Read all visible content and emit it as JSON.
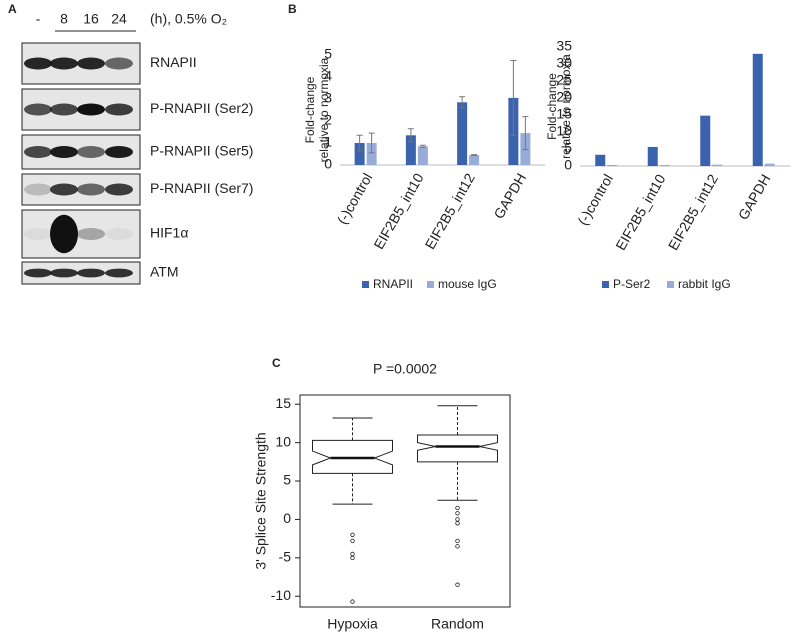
{
  "panels": {
    "a": "A",
    "b": "B",
    "c": "C"
  },
  "blot": {
    "lanes": [
      "-",
      "8",
      "16",
      "24"
    ],
    "condition": "(h), 0.5% O₂",
    "rows": [
      "RNAPII",
      "P-RNAPII (Ser2)",
      "P-RNAPII (Ser5)",
      "P-RNAPII (Ser7)",
      "HIF1α",
      "ATM"
    ]
  },
  "chart_data": [
    {
      "type": "bar",
      "ylabel": [
        "Fold-change",
        "relative to normoxia"
      ],
      "categories": [
        "(-)control",
        "EIF2B5_int10",
        "EIF2B5_int12",
        "GAPDH"
      ],
      "series": [
        {
          "name": "RNAPII",
          "color": "#3a62ad",
          "values": [
            1.0,
            1.35,
            2.85,
            3.05
          ],
          "errors": [
            0.35,
            0.3,
            0.25,
            1.7
          ]
        },
        {
          "name": "mouse IgG",
          "color": "#98acd9",
          "values": [
            1.0,
            0.85,
            0.45,
            1.45
          ],
          "errors": [
            0.45,
            0.05,
            0.02,
            0.75
          ]
        }
      ],
      "ylim": [
        0,
        5
      ],
      "yticks": [
        0,
        1,
        2,
        3,
        4,
        5
      ]
    },
    {
      "type": "bar",
      "ylabel": [
        "Fold-change",
        "relative to normoxia"
      ],
      "categories": [
        "(-)control",
        "EIF2B5_int10",
        "EIF2B5_int12",
        "GAPDH"
      ],
      "series": [
        {
          "name": "P-Ser2",
          "color": "#3a62ad",
          "values": [
            3.3,
            5.6,
            14.8,
            33
          ]
        },
        {
          "name": "rabbit IgG",
          "color": "#98acd9",
          "values": [
            0.3,
            0.3,
            0.4,
            0.7
          ]
        }
      ],
      "ylim": [
        0,
        35
      ],
      "yticks": [
        0,
        5,
        10,
        15,
        20,
        25,
        30,
        35
      ]
    },
    {
      "type": "box",
      "title": "P =0.0002",
      "ylabel": "3' Splice Site Strength",
      "categories": [
        "Hypoxia",
        "Random"
      ],
      "boxes": [
        {
          "low": 2.0,
          "q1": 6.0,
          "median": 8.0,
          "q3": 10.3,
          "high": 13.2,
          "notch": [
            7.1,
            8.9
          ],
          "outliers": [
            -2,
            -2.8,
            -4.5,
            -5,
            -10.7
          ]
        },
        {
          "low": 2.5,
          "q1": 7.5,
          "median": 9.5,
          "q3": 11,
          "high": 14.8,
          "notch": [
            9.0,
            10.0
          ],
          "outliers": [
            1.5,
            0.8,
            0,
            -0.5,
            -2.8,
            -3.5,
            -8.5
          ]
        }
      ],
      "ylim": [
        -11.4,
        16.2
      ],
      "yticks": [
        -10,
        -5,
        0,
        5,
        10,
        15
      ]
    }
  ]
}
